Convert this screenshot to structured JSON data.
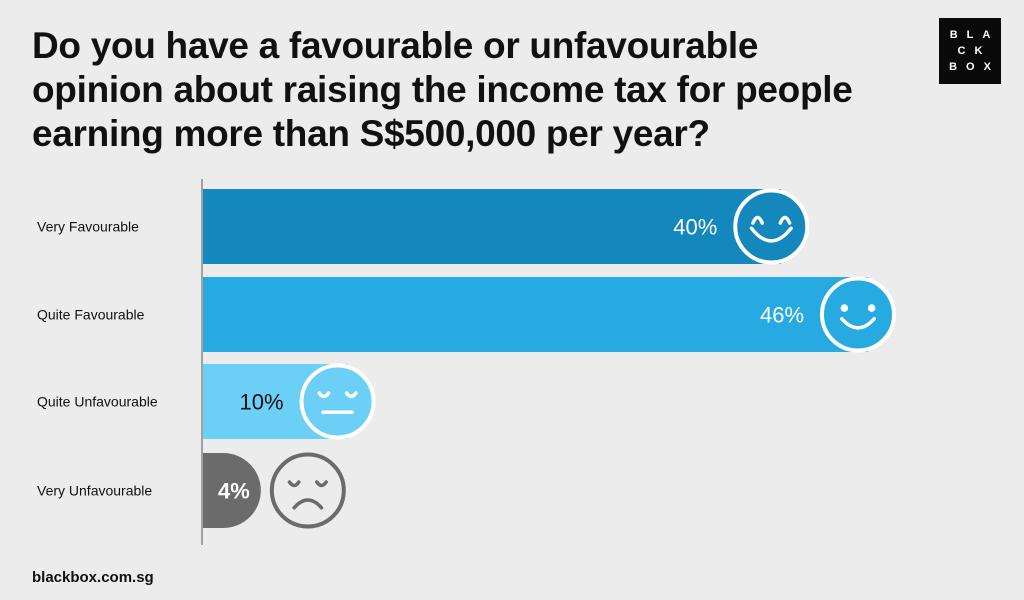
{
  "title": "Do you have a favourable or unfavourable opinion about raising the income tax for people earning more than S$500,000 per year?",
  "logo": {
    "lines": [
      "BLA",
      "CK",
      "BOX"
    ]
  },
  "footer": "blackbox.com.sg",
  "colors": {
    "very_favourable": "#1487bd",
    "quite_favourable": "#27a9e1",
    "quite_unfavourable": "#6ccff6",
    "very_unfavourable": "#6b6b6b",
    "axis": "#888888",
    "face_outline": "#ffffff"
  },
  "chart_data": {
    "type": "bar",
    "orientation": "horizontal",
    "categories": [
      "Very Favourable",
      "Quite Favourable",
      "Quite Unfavourable",
      "Very Unfavourable"
    ],
    "values": [
      40,
      46,
      10,
      4
    ],
    "value_labels": [
      "40%",
      "46%",
      "10%",
      "4%"
    ],
    "icons": [
      "grinning-face-icon",
      "smiling-face-icon",
      "neutral-face-icon",
      "sad-face-icon"
    ],
    "title": "Do you have a favourable or unfavourable opinion about raising the income tax for people earning more than S$500,000 per year?",
    "xlabel": "",
    "ylabel": "",
    "xlim": [
      0,
      46
    ],
    "grid": false
  }
}
